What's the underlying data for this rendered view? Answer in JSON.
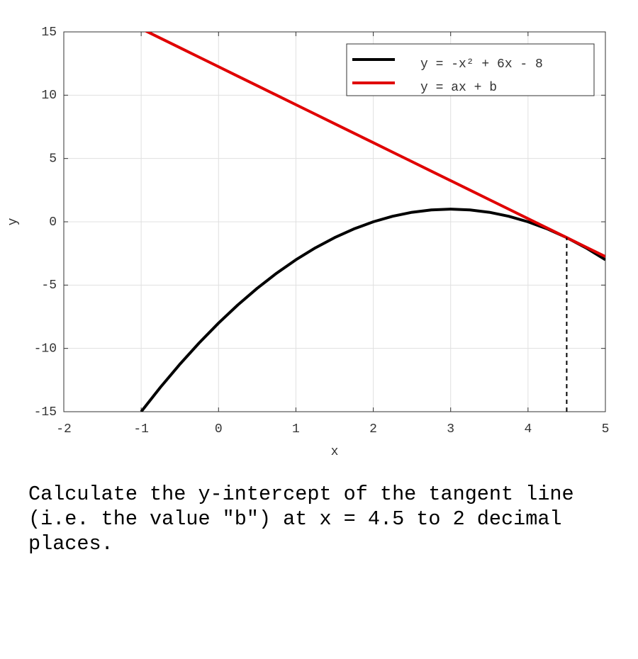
{
  "chart_data": {
    "type": "line",
    "xlabel": "x",
    "ylabel": "y",
    "x": [
      -1,
      -0.75,
      -0.5,
      -0.25,
      0,
      0.25,
      0.5,
      0.75,
      1,
      1.25,
      1.5,
      1.75,
      2,
      2.25,
      2.5,
      2.75,
      3,
      3.25,
      3.5,
      3.75,
      4,
      4.25,
      4.5,
      4.75,
      5
    ],
    "series": [
      {
        "name": "y = -x² + 6x - 8",
        "color": "#000000",
        "values": [
          -15,
          -13.0625,
          -11.25,
          -9.5625,
          -8,
          -6.5625,
          -5.25,
          -4.0625,
          -3,
          -2.0625,
          -1.25,
          -0.5625,
          0,
          0.4375,
          0.75,
          0.9375,
          1,
          0.9375,
          0.75,
          0.4375,
          0,
          -0.5625,
          -1.25,
          -2.0625,
          -3
        ]
      },
      {
        "name": "y = ax + b",
        "color": "#e00000",
        "values": [
          15.25,
          14.5,
          13.75,
          13,
          12.25,
          11.5,
          10.75,
          10,
          9.25,
          8.5,
          7.75,
          7,
          6.25,
          5.5,
          4.75,
          4,
          3.25,
          2.5,
          1.75,
          1,
          0.25,
          -0.5,
          -1.25,
          -2,
          -2.75
        ]
      }
    ],
    "vline": {
      "x": 4.5,
      "y": -1.25
    },
    "xlim": [
      -2,
      5
    ],
    "xticks": [
      -2,
      -1,
      0,
      1,
      2,
      3,
      4,
      5
    ],
    "ylim": [
      -15,
      15
    ],
    "yticks": [
      -15,
      -10,
      -5,
      0,
      5,
      10,
      15
    ],
    "grid": true,
    "legend": "upper right"
  },
  "question": "Calculate the y-intercept of the tangent line (i.e. the value \"b\") at x = 4.5 to 2 decimal places."
}
